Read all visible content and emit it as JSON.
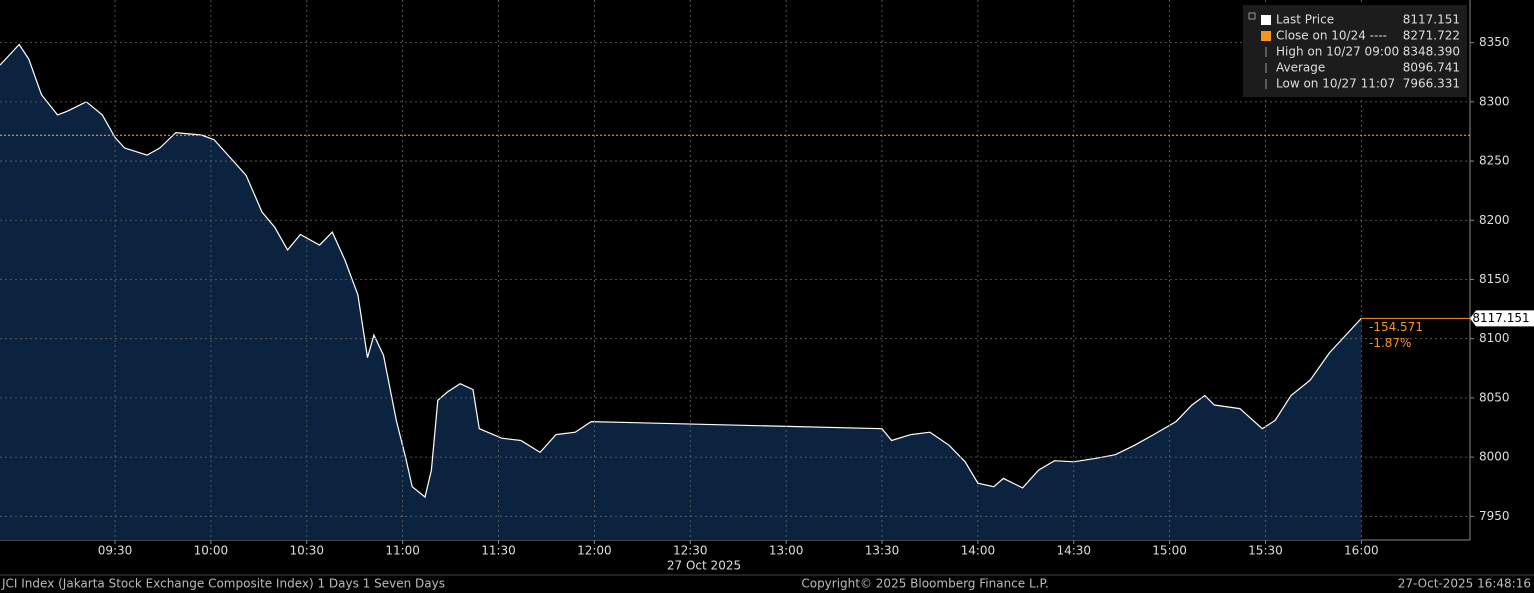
{
  "chart_data": {
    "type": "area",
    "x_label": "27 Oct 2025",
    "x": [
      "08:54",
      "09:00",
      "09:03",
      "09:07",
      "09:12",
      "09:15",
      "09:21",
      "09:26",
      "09:30",
      "09:33",
      "09:40",
      "09:44",
      "09:49",
      "09:57",
      "10:01",
      "10:06",
      "10:11",
      "10:16",
      "10:20",
      "10:24",
      "10:28",
      "10:34",
      "10:38",
      "10:42",
      "10:46",
      "10:49",
      "10:51",
      "10:54",
      "10:58",
      "11:01",
      "11:03",
      "11:07",
      "11:09",
      "11:11",
      "11:14",
      "11:18",
      "11:22",
      "11:24",
      "11:31",
      "11:37",
      "11:43",
      "11:48",
      "11:54",
      "11:59",
      "13:30",
      "13:33",
      "13:39",
      "13:45",
      "13:51",
      "13:56",
      "14:00",
      "14:05",
      "14:08",
      "14:14",
      "14:19",
      "14:24",
      "14:30",
      "14:37",
      "14:43",
      "14:49",
      "14:55",
      "15:02",
      "15:07",
      "15:11",
      "15:14",
      "15:22",
      "15:29",
      "15:33",
      "15:38",
      "15:44",
      "15:50",
      "16:00"
    ],
    "series": [
      {
        "name": "Last Price",
        "color": "#ffffff",
        "fill": "#0c2340",
        "values": [
          8331,
          8348.39,
          8336,
          8306,
          8289,
          8292,
          8300,
          8289,
          8270,
          8261,
          8255,
          8261,
          8274,
          8272,
          8268,
          8253,
          8238,
          8207,
          8194,
          8175,
          8188,
          8179,
          8190,
          8166,
          8137,
          8084,
          8103,
          8086,
          8031,
          7999,
          7975,
          7966.331,
          7989,
          8048,
          8055,
          8062,
          8057,
          8024,
          8016,
          8014,
          8004,
          8019,
          8021,
          8030,
          8024,
          8014,
          8019,
          8021,
          8010,
          7996,
          7978,
          7975,
          7982,
          7974,
          7989,
          7997,
          7996,
          7999,
          8002,
          8010,
          8019,
          8030,
          8044,
          8052,
          8044,
          8041,
          8024,
          8031,
          8052,
          8065,
          8088,
          8117.151
        ]
      }
    ],
    "legend": [
      {
        "label": "Last Price",
        "value": "8117.151",
        "color": "#ffffff",
        "icon": "square"
      },
      {
        "label": "Close on 10/24 ----",
        "value": 8271.722,
        "color": "#f7941d",
        "icon": "square"
      },
      {
        "label": "High on 10/27 09:00",
        "value": 8348.39,
        "value_label": "8348.390",
        "icon": "high"
      },
      {
        "label": "Average",
        "value": 8096.741,
        "icon": "avg"
      },
      {
        "label": "Low on 10/27 11:07",
        "value": 7966.331,
        "icon": "low"
      }
    ],
    "last_value": 8117.151,
    "change": "-154.571",
    "change_pct": "-1.87%",
    "xlim": [
      "08:54",
      "16:34"
    ],
    "xticks": [
      "09:30",
      "10:00",
      "10:30",
      "11:00",
      "11:30",
      "12:00",
      "12:30",
      "13:00",
      "13:30",
      "14:00",
      "14:30",
      "15:00",
      "15:30",
      "16:00"
    ],
    "ylim": [
      7930,
      8386
    ],
    "yticks": [
      7950,
      8000,
      8050,
      8100,
      8150,
      8200,
      8250,
      8300,
      8350
    ],
    "grid": true
  },
  "footer": {
    "left": "JCI Index (Jakarta Stock Exchange Composite Index) 1 Days 1 Seven Days",
    "center": "Copyright© 2025 Bloomberg Finance L.P.",
    "right": "27-Oct-2025 16:48:16"
  }
}
